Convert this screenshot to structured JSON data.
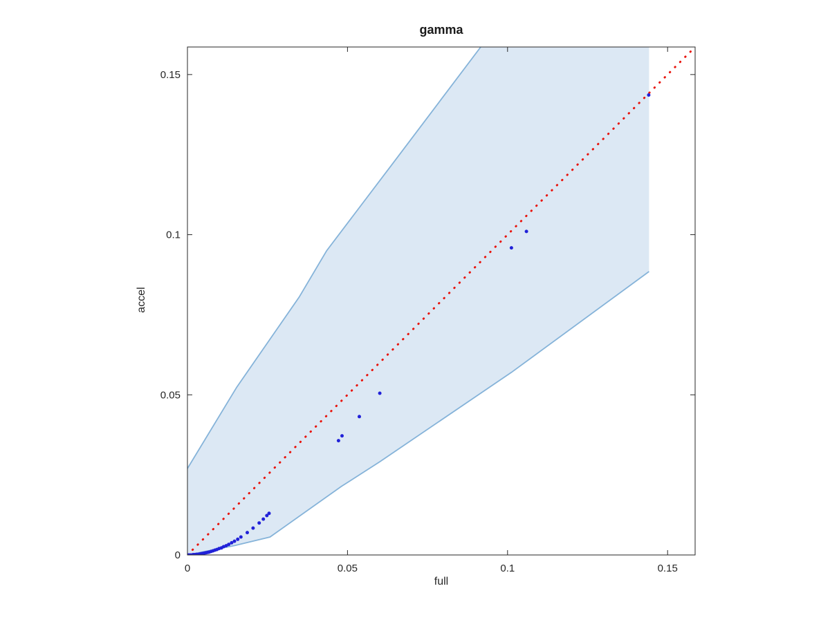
{
  "figure": {
    "background": "#ffffff"
  },
  "chart_data": {
    "type": "scatter",
    "title": "gamma",
    "xlabel": "full",
    "ylabel": "accel",
    "xlim": [
      0,
      0.1586
    ],
    "ylim": [
      0,
      0.1586
    ],
    "xticks": [
      0,
      0.05,
      0.1,
      0.15
    ],
    "xtick_labels": [
      "0",
      "0.05",
      "0.1",
      "0.15"
    ],
    "yticks": [
      0,
      0.05,
      0.1,
      0.15
    ],
    "ytick_labels": [
      "0",
      "0.05",
      "0.1",
      "0.15"
    ],
    "grid": false,
    "legend": null,
    "axis_color": "#262626",
    "identity_line": {
      "style": "dotted",
      "color": "#e8140c",
      "from": [
        0,
        0
      ],
      "to": [
        0.17,
        0.17
      ]
    },
    "band": {
      "fill": "#dce8f4",
      "edge_color": "#85b3d9",
      "upper": [
        [
          0.0,
          0.027
        ],
        [
          0.0154,
          0.0524
        ],
        [
          0.0349,
          0.0805
        ],
        [
          0.0435,
          0.095
        ],
        [
          0.0636,
          0.1215
        ],
        [
          0.0917,
          0.1587
        ],
        [
          0.105,
          0.175
        ]
      ],
      "right_edge_x": 0.1442,
      "lower": [
        [
          0.0,
          0.0
        ],
        [
          0.015,
          0.003
        ],
        [
          0.0258,
          0.0056
        ],
        [
          0.0481,
          0.0214
        ],
        [
          0.0601,
          0.0291
        ],
        [
          0.1012,
          0.057
        ],
        [
          0.1442,
          0.0885
        ]
      ]
    },
    "series": [
      {
        "name": "accel-vs-full-points",
        "marker": "point",
        "color": "#2121d8",
        "points": [
          [
            0.0003,
            0.0
          ],
          [
            0.0008,
            0.0
          ],
          [
            0.0013,
            0.0
          ],
          [
            0.0018,
            0.0001
          ],
          [
            0.0023,
            0.0001
          ],
          [
            0.0028,
            0.0002
          ],
          [
            0.0033,
            0.0002
          ],
          [
            0.0038,
            0.0003
          ],
          [
            0.0043,
            0.0004
          ],
          [
            0.0048,
            0.0005
          ],
          [
            0.0053,
            0.0006
          ],
          [
            0.0058,
            0.0007
          ],
          [
            0.0063,
            0.0008
          ],
          [
            0.0068,
            0.0009
          ],
          [
            0.0074,
            0.0011
          ],
          [
            0.008,
            0.0013
          ],
          [
            0.0086,
            0.0015
          ],
          [
            0.0092,
            0.0017
          ],
          [
            0.0099,
            0.002
          ],
          [
            0.0106,
            0.0022
          ],
          [
            0.0113,
            0.0026
          ],
          [
            0.0121,
            0.0029
          ],
          [
            0.0129,
            0.0033
          ],
          [
            0.0138,
            0.0038
          ],
          [
            0.0147,
            0.0043
          ],
          [
            0.0157,
            0.0049
          ],
          [
            0.0167,
            0.0056
          ],
          [
            0.0187,
            0.007
          ],
          [
            0.0205,
            0.0084
          ],
          [
            0.0224,
            0.01
          ],
          [
            0.0237,
            0.0112
          ],
          [
            0.0248,
            0.0123
          ],
          [
            0.0255,
            0.013
          ],
          [
            0.0472,
            0.0357
          ],
          [
            0.0483,
            0.0372
          ],
          [
            0.0537,
            0.0432
          ],
          [
            0.0601,
            0.0505
          ],
          [
            0.1012,
            0.0959
          ],
          [
            0.1059,
            0.101
          ],
          [
            0.1441,
            0.1436
          ]
        ]
      }
    ]
  }
}
